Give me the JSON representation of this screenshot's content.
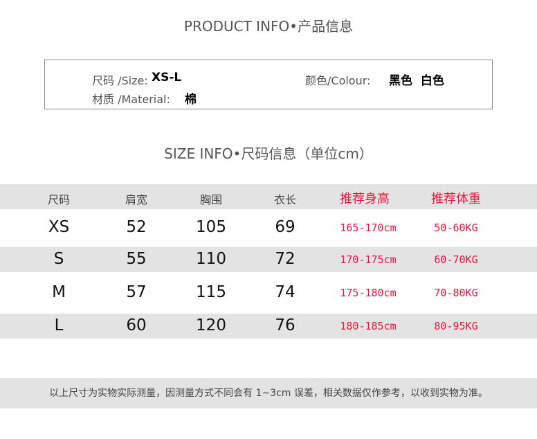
{
  "product_info_title": "PRODUCT INFO•产品信息",
  "info": {
    "size_label": "尺码 /Size:",
    "size_value": "XS-L",
    "colour_label": "颜色/Colour:",
    "colour_value": "黑色  白色",
    "material_label": "材质 /Material:",
    "material_value": "棉"
  },
  "size_info_title": "SIZE INFO•尺码信息（单位cm）",
  "table": {
    "headers": [
      "尺码",
      "肩宽",
      "胸围",
      "衣长",
      "推荐身高",
      "推荐体重"
    ],
    "rows": [
      [
        "XS",
        "52",
        "105",
        "69",
        "165-170cm",
        "50-60KG"
      ],
      [
        "S",
        "55",
        "110",
        "72",
        "170-175cm",
        "60-70KG"
      ],
      [
        "M",
        "57",
        "115",
        "74",
        "175-180cm",
        "70-80KG"
      ],
      [
        "L",
        "60",
        "120",
        "76",
        "180-185cm",
        "80-95KG"
      ]
    ]
  },
  "footer_note": "以上尺寸为实物实际测量，因测量方式不同会有 1~3cm 误差，相关数据仅作参考，以收到实物为准。",
  "colors": {
    "accent_red": "#f0143c",
    "band_grey": "#e3e3e3"
  }
}
